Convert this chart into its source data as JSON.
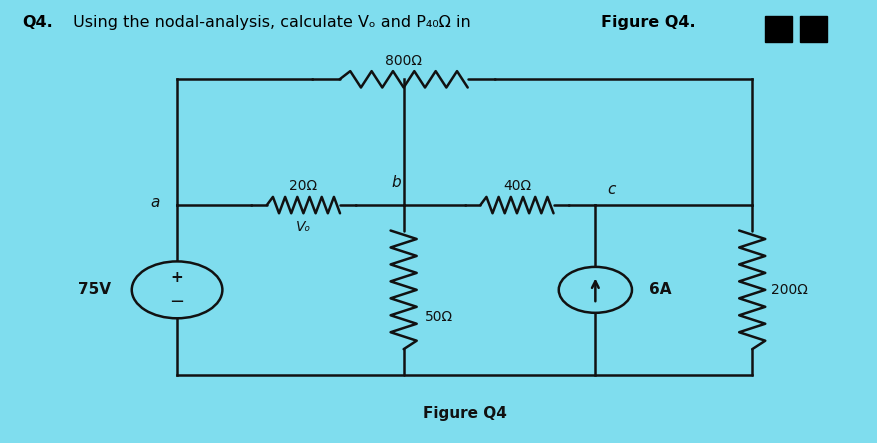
{
  "bg_color": "#7FDDEE",
  "line_color": "#111111",
  "r800": "800Ω",
  "r20": "20Ω",
  "r40": "40Ω",
  "r50": "50Ω",
  "r200": "200Ω",
  "vs": "75V",
  "cs": "6A",
  "vo": "Vₒ",
  "na": "a",
  "nb": "b",
  "nc": "c",
  "figure_caption": "Figure Q4",
  "title_bold1": "Q4.",
  "title_normal": " Using the nodal-analysis, calculate Vₒ and P₄₀Ω in ",
  "title_bold2": "Figure Q4."
}
